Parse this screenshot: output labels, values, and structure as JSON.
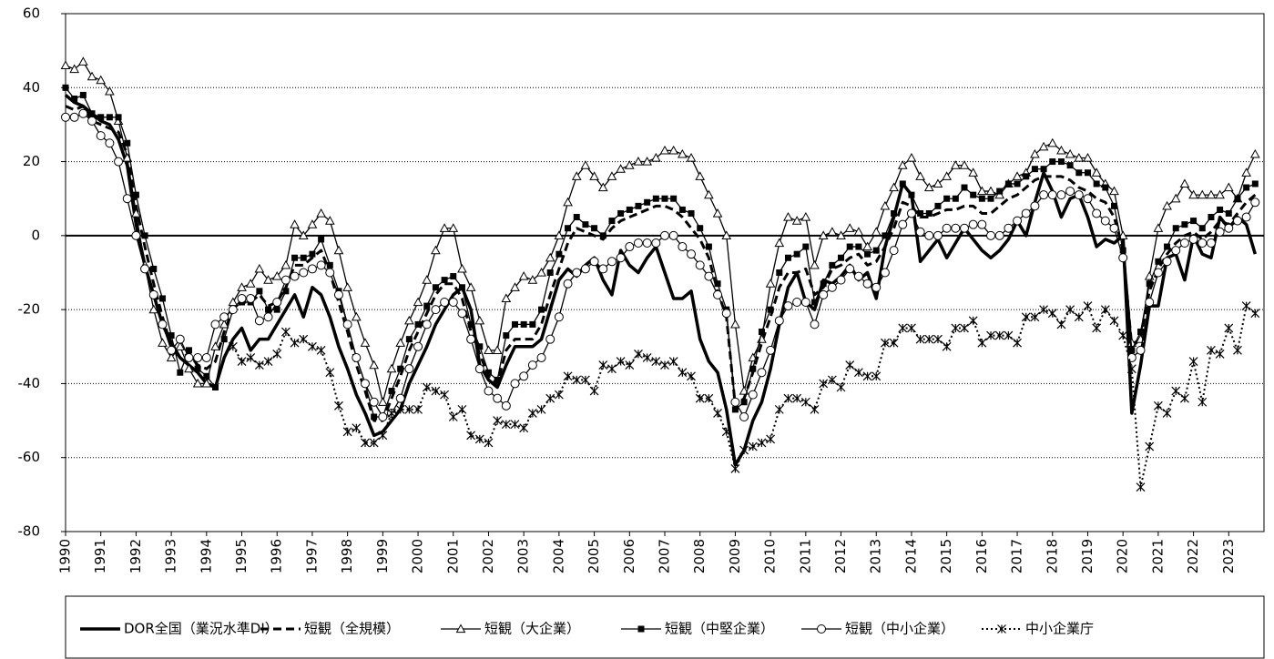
{
  "chart_data": {
    "type": "line",
    "categories": [
      "1990",
      null,
      null,
      null,
      "1991",
      null,
      null,
      null,
      "1992",
      null,
      null,
      null,
      "1993",
      null,
      null,
      null,
      "1994",
      null,
      null,
      null,
      "1995",
      null,
      null,
      null,
      "1996",
      null,
      null,
      null,
      "1997",
      null,
      null,
      null,
      "1998",
      null,
      null,
      null,
      "1999",
      null,
      null,
      null,
      "2000",
      null,
      null,
      null,
      "2001",
      null,
      null,
      null,
      "2002",
      null,
      null,
      null,
      "2003",
      null,
      null,
      null,
      "2004",
      null,
      null,
      null,
      "2005",
      null,
      null,
      null,
      "2006",
      null,
      null,
      null,
      "2007",
      null,
      null,
      null,
      "2008",
      null,
      null,
      null,
      "2009",
      null,
      null,
      null,
      "2010",
      null,
      null,
      null,
      "2011",
      null,
      null,
      null,
      "2012",
      null,
      null,
      null,
      "2013",
      null,
      null,
      null,
      "2014",
      null,
      null,
      null,
      "2015",
      null,
      null,
      null,
      "2016",
      null,
      null,
      null,
      "2017",
      null,
      null,
      null,
      "2018",
      null,
      null,
      null,
      "2019",
      null,
      null,
      null,
      "2020",
      null,
      null,
      null,
      "2021",
      null,
      null,
      null,
      "2022",
      null,
      null,
      null,
      "2023",
      null,
      null,
      null
    ],
    "ylim": [
      -80,
      60
    ],
    "yticks": [
      -80,
      -60,
      -40,
      -20,
      0,
      20,
      40,
      60
    ],
    "grid": true,
    "series": [
      {
        "name": "DOR全国（業況水準DI）",
        "color": "#000000",
        "width": 3.5,
        "dash": "none",
        "marker": "none",
        "values": [
          38,
          36,
          35,
          33,
          31,
          30,
          26,
          19,
          3,
          -8,
          -16,
          -24,
          -29,
          -33,
          -35,
          -37,
          -40,
          -41,
          -33,
          -28,
          -25,
          -31,
          -28,
          -28,
          -24,
          -20,
          -16,
          -22,
          -14,
          -16,
          -22,
          -30,
          -36,
          -43,
          -48,
          -54,
          -53,
          -50,
          -47,
          -40,
          -35,
          -30,
          -24,
          -20,
          -16,
          -14,
          -20,
          -35,
          -39,
          -41,
          -35,
          -30,
          -30,
          -30,
          -28,
          -20,
          -12,
          -9,
          -11,
          -8,
          -6,
          -12,
          -16,
          -4,
          -8,
          -10,
          -6,
          -3,
          -10,
          -17,
          -17,
          -15,
          -28,
          -34,
          -37,
          -47,
          -62,
          -58,
          -50,
          -45,
          -36,
          -24,
          -14,
          -10,
          -18,
          -20,
          -12,
          -13,
          -11,
          -8,
          -12,
          -10,
          -17,
          -3,
          5,
          14,
          11,
          -7,
          -4,
          -1,
          -6,
          -2,
          2,
          -1,
          -4,
          -6,
          -4,
          -1,
          4,
          0,
          9,
          17,
          12,
          5,
          10,
          11,
          5,
          -3,
          -1,
          -2,
          0,
          -48,
          -35,
          -19,
          -19,
          -6,
          -5,
          -12,
          0,
          -5,
          -6,
          5,
          2,
          5,
          3,
          -5
        ]
      },
      {
        "name": "短観（全規模）",
        "color": "#000000",
        "width": 3,
        "dash": "9,5",
        "marker": "none",
        "values": [
          35,
          34,
          35,
          31,
          30,
          29,
          28,
          22,
          8,
          -3,
          -13,
          -22,
          -30,
          -33,
          -32,
          -35,
          -36,
          -34,
          -26,
          -20,
          -18,
          -18,
          -16,
          -19,
          -18,
          -14,
          -8,
          -8,
          -6,
          -4,
          -10,
          -18,
          -26,
          -35,
          -42,
          -50,
          -50,
          -44,
          -38,
          -31,
          -26,
          -21,
          -16,
          -13,
          -13,
          -17,
          -26,
          -32,
          -38,
          -40,
          -31,
          -28,
          -28,
          -28,
          -24,
          -16,
          -9,
          -2,
          2,
          1,
          0,
          -1,
          2,
          4,
          5,
          6,
          7,
          8,
          8,
          7,
          5,
          2,
          -1,
          -6,
          -15,
          -22,
          -46,
          -44,
          -37,
          -29,
          -22,
          -14,
          -10,
          -10,
          -9,
          -16,
          -14,
          -9,
          -8,
          -6,
          -5,
          -8,
          -7,
          -3,
          2,
          9,
          8,
          5,
          5,
          6,
          7,
          7,
          8,
          8,
          6,
          6,
          8,
          10,
          11,
          13,
          15,
          16,
          16,
          16,
          15,
          13,
          12,
          10,
          9,
          5,
          -4,
          -30,
          -28,
          -15,
          -9,
          -5,
          -2,
          0,
          1,
          -1,
          1,
          4,
          3,
          6,
          9,
          11
        ]
      },
      {
        "name": "短観（大企業）",
        "color": "#000000",
        "width": 1.3,
        "dash": "none",
        "marker": "triangle",
        "values": [
          46,
          45,
          47,
          43,
          42,
          39,
          31,
          21,
          6,
          -8,
          -20,
          -29,
          -33,
          -30,
          -36,
          -40,
          -40,
          -30,
          -24,
          -18,
          -14,
          -13,
          -9,
          -12,
          -11,
          -8,
          3,
          0,
          3,
          6,
          4,
          -4,
          -14,
          -22,
          -29,
          -35,
          -45,
          -36,
          -29,
          -23,
          -18,
          -12,
          -4,
          2,
          2,
          -9,
          -14,
          -23,
          -31,
          -31,
          -17,
          -14,
          -11,
          -12,
          -10,
          -6,
          0,
          9,
          16,
          19,
          16,
          13,
          16,
          18,
          19,
          20,
          20,
          21,
          23,
          23,
          22,
          21,
          16,
          11,
          6,
          0,
          -24,
          -42,
          -33,
          -28,
          -13,
          -2,
          5,
          4,
          5,
          -8,
          0,
          1,
          0,
          2,
          1,
          -3,
          1,
          8,
          13,
          19,
          21,
          16,
          13,
          14,
          16,
          19,
          19,
          17,
          12,
          12,
          11,
          14,
          16,
          17,
          22,
          24,
          25,
          23,
          22,
          21,
          21,
          17,
          14,
          12,
          0,
          -29,
          -28,
          -11,
          2,
          8,
          10,
          14,
          11,
          11,
          11,
          11,
          13,
          10,
          17,
          22
        ]
      },
      {
        "name": "短観（中堅企業）",
        "color": "#000000",
        "width": 1.3,
        "dash": "none",
        "marker": "square",
        "values": [
          40,
          37,
          38,
          33,
          32,
          32,
          32,
          25,
          11,
          0,
          -9,
          -17,
          -27,
          -37,
          -31,
          -36,
          -38,
          -41,
          -28,
          -20,
          -18,
          -18,
          -15,
          -20,
          -20,
          -15,
          -6,
          -6,
          -5,
          -1,
          -8,
          -15,
          -24,
          -33,
          -40,
          -49,
          -49,
          -42,
          -36,
          -28,
          -24,
          -19,
          -14,
          -12,
          -11,
          -14,
          -24,
          -30,
          -37,
          -39,
          -27,
          -24,
          -24,
          -24,
          -20,
          -10,
          -5,
          2,
          5,
          3,
          2,
          0,
          4,
          6,
          7,
          8,
          9,
          10,
          10,
          10,
          7,
          6,
          2,
          -3,
          -13,
          -20,
          -47,
          -45,
          -36,
          -26,
          -20,
          -10,
          -6,
          -5,
          -3,
          -18,
          -13,
          -8,
          -6,
          -3,
          -3,
          -5,
          -4,
          0,
          6,
          14,
          11,
          6,
          6,
          8,
          10,
          10,
          13,
          11,
          10,
          10,
          12,
          14,
          14,
          16,
          18,
          18,
          20,
          20,
          19,
          17,
          17,
          14,
          13,
          8,
          -4,
          -31,
          -26,
          -13,
          -7,
          -3,
          2,
          3,
          4,
          2,
          5,
          7,
          6,
          10,
          13,
          14
        ]
      },
      {
        "name": "短観（中小企業）",
        "color": "#000000",
        "width": 1.3,
        "dash": "none",
        "marker": "circle",
        "values": [
          32,
          32,
          33,
          31,
          27,
          25,
          20,
          10,
          0,
          -9,
          -16,
          -24,
          -31,
          -28,
          -33,
          -33,
          -33,
          -24,
          -22,
          -20,
          -17,
          -17,
          -23,
          -22,
          -18,
          -12,
          -11,
          -10,
          -9,
          -8,
          -10,
          -16,
          -24,
          -33,
          -40,
          -45,
          -49,
          -48,
          -44,
          -36,
          -30,
          -24,
          -20,
          -18,
          -18,
          -21,
          -28,
          -36,
          -42,
          -44,
          -46,
          -40,
          -38,
          -35,
          -33,
          -28,
          -22,
          -13,
          -10,
          -9,
          -7,
          -9,
          -7,
          -6,
          -3,
          -2,
          -2,
          -2,
          0,
          0,
          -3,
          -5,
          -8,
          -11,
          -16,
          -21,
          -45,
          -49,
          -43,
          -37,
          -31,
          -23,
          -19,
          -18,
          -18,
          -24,
          -16,
          -14,
          -12,
          -9,
          -11,
          -13,
          -14,
          -10,
          -4,
          3,
          6,
          1,
          0,
          0,
          2,
          2,
          2,
          3,
          3,
          0,
          0,
          2,
          4,
          6,
          8,
          11,
          11,
          11,
          12,
          11,
          10,
          6,
          4,
          2,
          -6,
          -33,
          -31,
          -18,
          -10,
          -7,
          -4,
          -2,
          -1,
          -2,
          -2,
          1,
          2,
          4,
          5,
          9
        ]
      },
      {
        "name": "中小企業庁",
        "color": "#000000",
        "width": 2,
        "dash": "2,3",
        "marker": "cross",
        "values": [
          null,
          null,
          null,
          null,
          null,
          null,
          null,
          null,
          null,
          null,
          null,
          null,
          null,
          null,
          null,
          null,
          null,
          null,
          null,
          -30,
          -34,
          -33,
          -35,
          -34,
          -32,
          -26,
          -29,
          -28,
          -30,
          -31,
          -37,
          -46,
          -53,
          -52,
          -56,
          -56,
          -54,
          -48,
          -47,
          -47,
          -47,
          -41,
          -42,
          -43,
          -49,
          -47,
          -54,
          -55,
          -56,
          -50,
          -51,
          -51,
          -52,
          -48,
          -47,
          -44,
          -43,
          -38,
          -39,
          -39,
          -42,
          -35,
          -36,
          -34,
          -35,
          -32,
          -33,
          -34,
          -35,
          -34,
          -37,
          -38,
          -44,
          -44,
          -48,
          -53,
          -63,
          -58,
          -57,
          -56,
          -55,
          -47,
          -44,
          -44,
          -45,
          -47,
          -40,
          -39,
          -41,
          -35,
          -37,
          -38,
          -38,
          -29,
          -29,
          -25,
          -25,
          -28,
          -28,
          -28,
          -30,
          -25,
          -25,
          -23,
          -29,
          -27,
          -27,
          -27,
          -29,
          -22,
          -22,
          -20,
          -21,
          -24,
          -20,
          -22,
          -19,
          -25,
          -20,
          -23,
          -27,
          -36,
          -68,
          -57,
          -46,
          -48,
          -42,
          -44,
          -34,
          -45,
          -31,
          -32,
          -25,
          -31,
          -19,
          -21
        ]
      }
    ]
  }
}
